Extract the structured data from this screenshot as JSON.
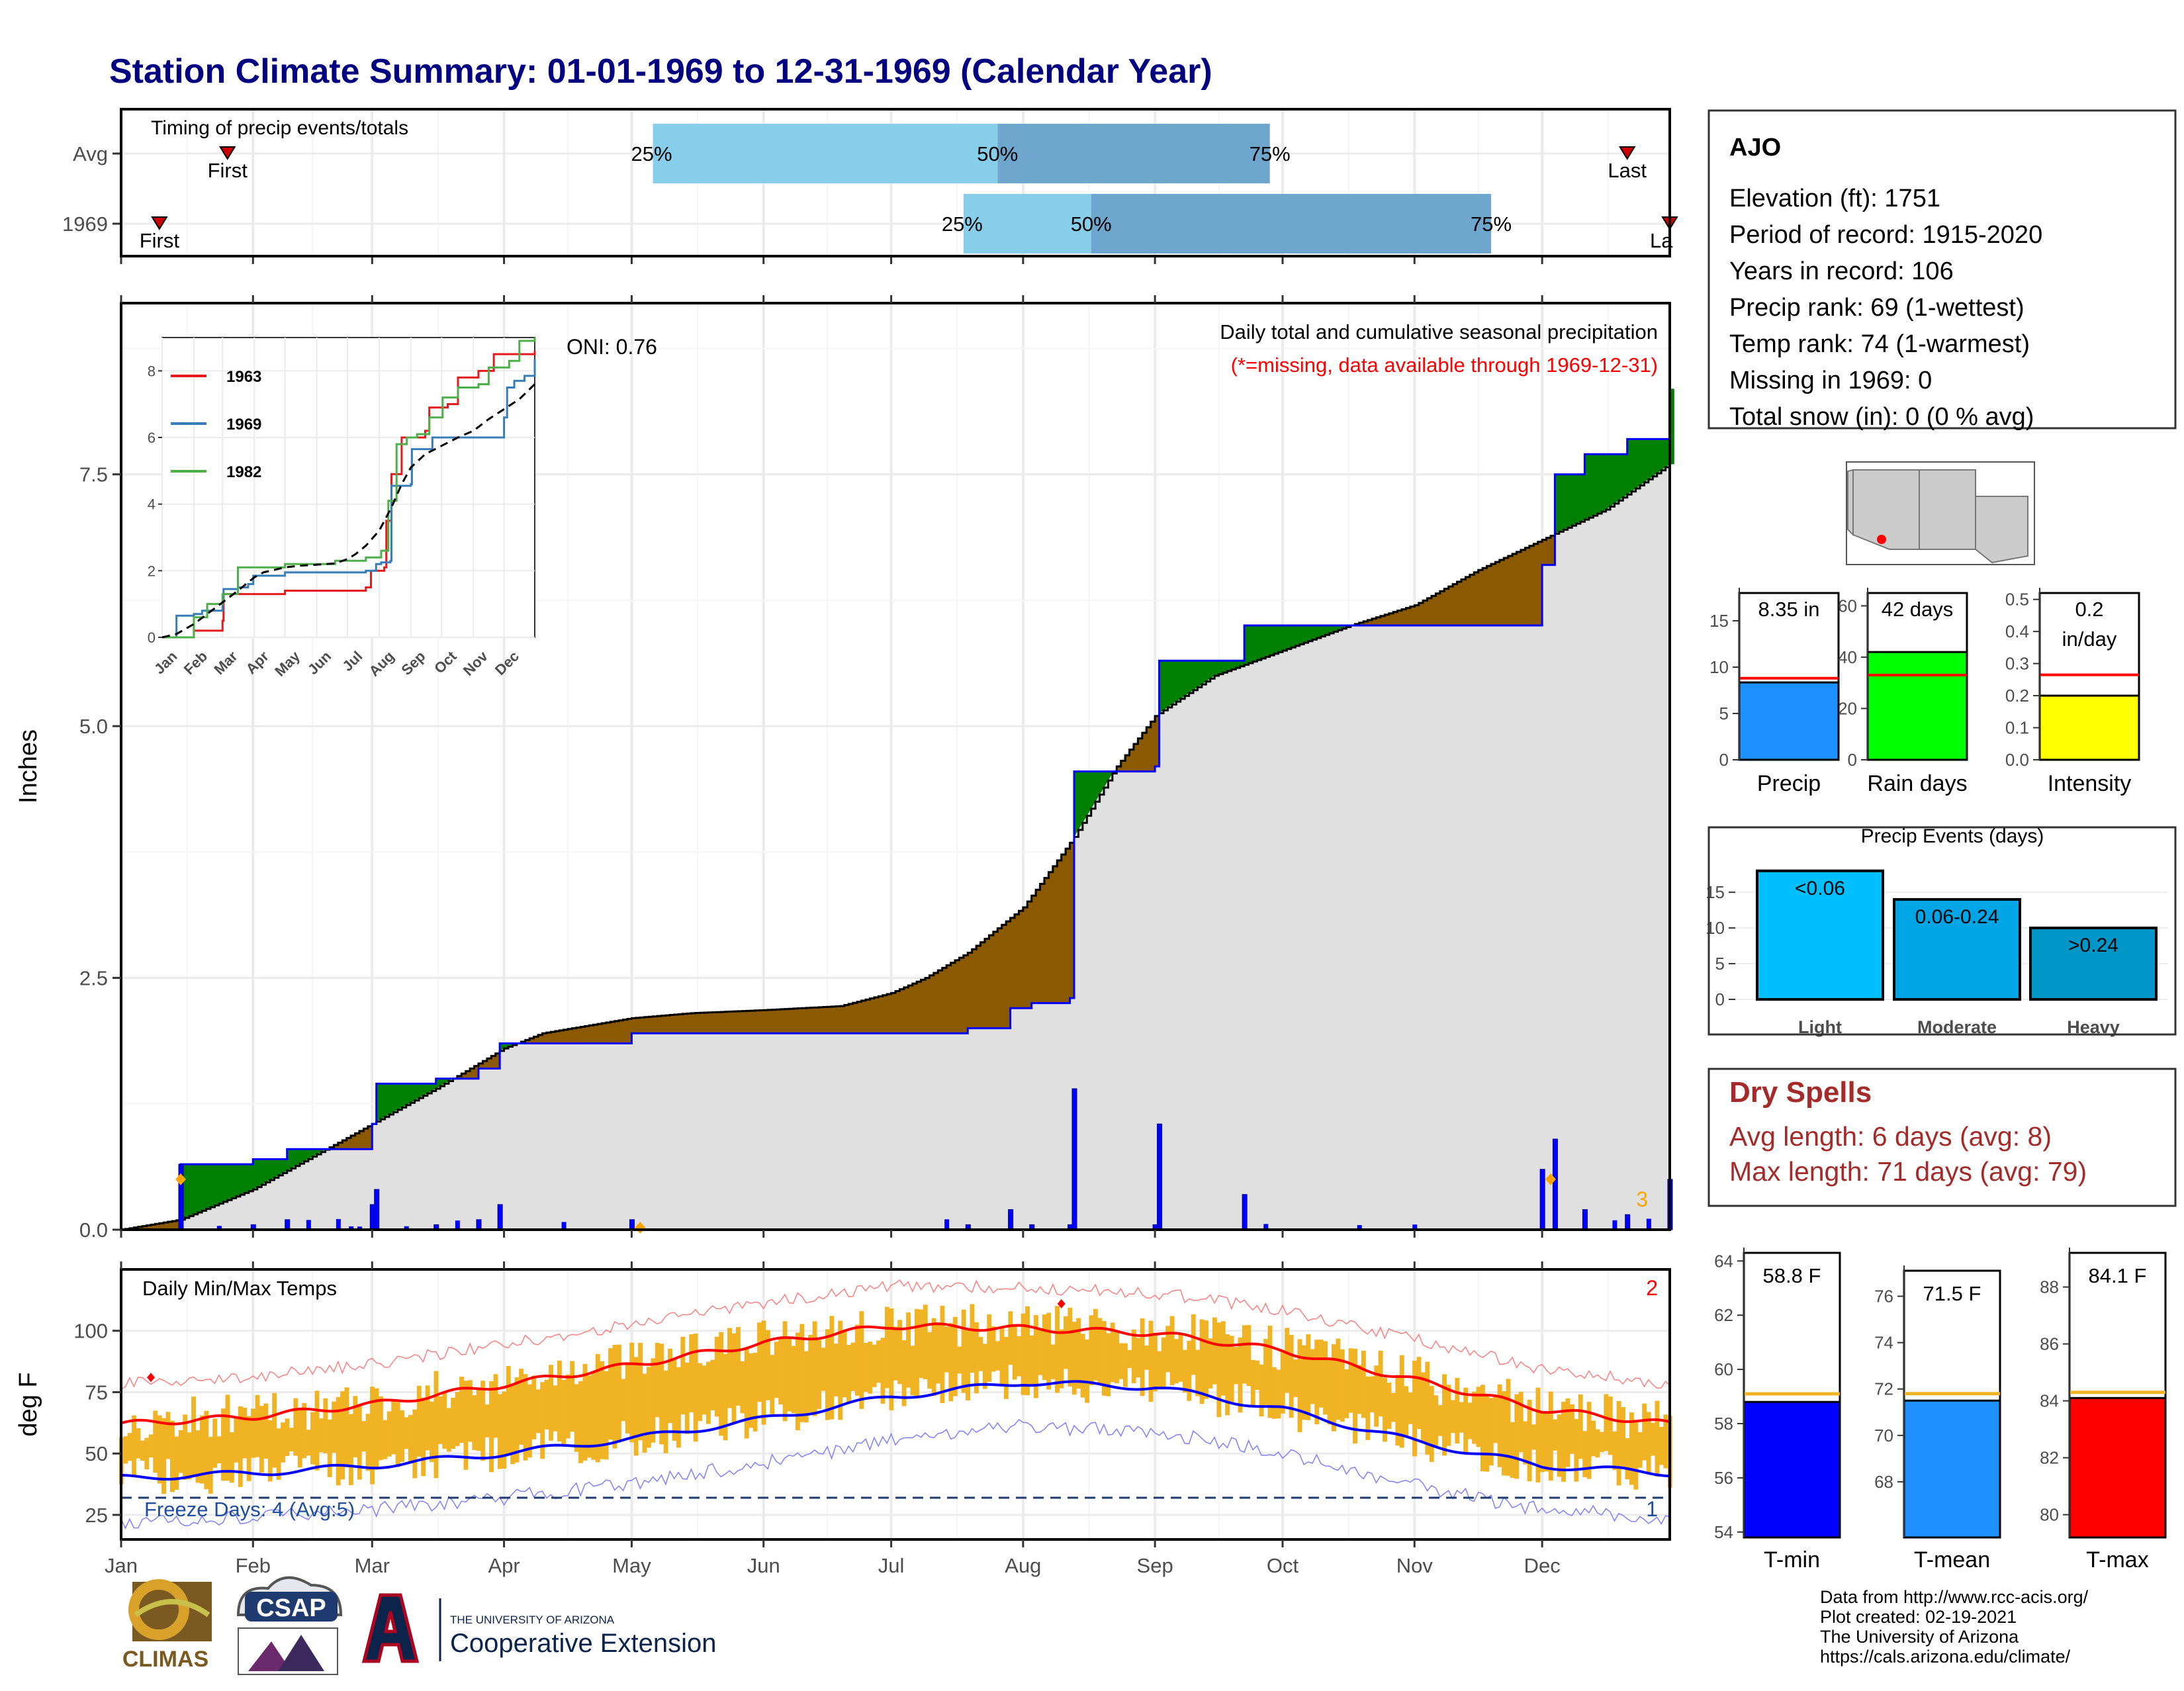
{
  "header": {
    "title": "Station Climate Summary: 01-01-1969 to 12-31-1969 (Calendar Year)"
  },
  "timing": {
    "title": "Timing of precip events/totals",
    "rows": [
      {
        "label": "Avg",
        "first": 26,
        "last": 355,
        "p25": 126,
        "p50": 207,
        "p75": 271
      },
      {
        "label": "1969",
        "first": 10,
        "last": 365,
        "p25": 199,
        "p50": 229,
        "p75": 323
      }
    ],
    "first_label": "First",
    "last_label": "Last",
    "last_label_clipped": "La",
    "p25_label": "25%",
    "p50_label": "50%",
    "p75_label": "75%"
  },
  "precip_panel": {
    "ylabel": "Inches",
    "yticks": [
      "0.0",
      "2.5",
      "5.0",
      "7.5"
    ],
    "ymax": 9.2,
    "oni": "ONI: 0.76",
    "subtitle": "Daily total and cumulative seasonal precipitation",
    "missing_note": "(*=missing, data available through 1969-12-31)",
    "count_label": "3",
    "colors": {
      "avg_fill": "#e0e0e0",
      "above": "#008000",
      "below": "#8b5a00",
      "bars": "#0000ff"
    }
  },
  "months": [
    "Jan",
    "Feb",
    "Mar",
    "Apr",
    "May",
    "Jun",
    "Jul",
    "Aug",
    "Sep",
    "Oct",
    "Nov",
    "Dec"
  ],
  "inset": {
    "yticks": [
      "0",
      "2",
      "4",
      "6",
      "8"
    ],
    "series": [
      {
        "name": "1963",
        "color": "#e41a1c"
      },
      {
        "name": "1969",
        "color": "#377eb8"
      },
      {
        "name": "1982",
        "color": "#4daf4a"
      }
    ]
  },
  "temp_panel": {
    "ylabel": "deg F",
    "title": "Daily Min/Max Temps",
    "yticks": [
      "25",
      "50",
      "75",
      "100"
    ],
    "freeze": "Freeze Days: 4 (Avg:5)",
    "record_hi_count": "2",
    "record_lo_count": "1",
    "freeze_line": 32
  },
  "station": {
    "name": "AJO",
    "lines": [
      "Elevation (ft): 1751",
      "Period of record: 1915-2020",
      "Years in record: 106",
      "Precip rank: 69 (1-wettest)",
      "Temp rank: 74 (1-warmest)",
      "Missing in 1969: 0",
      "Total snow (in): 0 (0 % avg)"
    ]
  },
  "summary_bars": [
    {
      "label": "Precip",
      "value_text": "8.35 in",
      "value": 8.35,
      "avg": 8.8,
      "ymax": 18,
      "ticks": [
        "0",
        "5",
        "10",
        "15"
      ],
      "tickvals": [
        0,
        5,
        10,
        15
      ],
      "color": "#1e90ff"
    },
    {
      "label": "Rain days",
      "value_text": "42 days",
      "value": 42,
      "avg": 33,
      "ymax": 65,
      "ticks": [
        "0",
        "20",
        "40",
        "60"
      ],
      "tickvals": [
        0,
        20,
        40,
        60
      ],
      "color": "#00ff00"
    },
    {
      "label": "Intensity",
      "value_text": "0.2",
      "value_text2": "in/day",
      "value": 0.2,
      "avg": 0.265,
      "ymax": 0.52,
      "ticks": [
        "0.0",
        "0.1",
        "0.2",
        "0.3",
        "0.4",
        "0.5"
      ],
      "tickvals": [
        0,
        0.1,
        0.2,
        0.3,
        0.4,
        0.5
      ],
      "color": "#ffff00"
    }
  ],
  "events": {
    "title": "Precip Events (days)",
    "yticks": [
      "0",
      "5",
      "10",
      "15"
    ],
    "bars": [
      {
        "label": "Light",
        "range": "<0.06",
        "value": 18,
        "color": "#00bfff"
      },
      {
        "label": "Moderate",
        "range": "0.06-0.24",
        "value": 14,
        "color": "#00a5e6"
      },
      {
        "label": "Heavy",
        "range": ">0.24",
        "value": 10,
        "color": "#0096c8"
      }
    ]
  },
  "dry_spells": {
    "title": "Dry Spells",
    "avg": "Avg length: 6 days (avg: 8)",
    "max": "Max length: 71 days (avg: 79)"
  },
  "temp_bars": [
    {
      "label": "T-min",
      "value_text": "58.8 F",
      "value": 58.8,
      "avg": 59.1,
      "ymin": 53.8,
      "ymax": 64.3,
      "ticks": [
        "54",
        "56",
        "58",
        "60",
        "62",
        "64"
      ],
      "tickvals": [
        54,
        56,
        58,
        60,
        62,
        64
      ],
      "color": "#0000ff"
    },
    {
      "label": "T-mean",
      "value_text": "71.5 F",
      "value": 71.5,
      "avg": 71.8,
      "ymin": 65.6,
      "ymax": 77.1,
      "ticks": [
        "68",
        "70",
        "72",
        "74",
        "76"
      ],
      "tickvals": [
        68,
        70,
        72,
        74,
        76
      ],
      "color": "#1e90ff"
    },
    {
      "label": "T-max",
      "value_text": "84.1 F",
      "value": 84.1,
      "avg": 84.3,
      "ymin": 79.2,
      "ymax": 89.2,
      "ticks": [
        "80",
        "82",
        "84",
        "86",
        "88"
      ],
      "tickvals": [
        80,
        82,
        84,
        86,
        88
      ],
      "color": "#ff0000"
    }
  ],
  "footer": {
    "lines": [
      "Data from http://www.rcc-acis.org/",
      "Plot created: 02-19-2021",
      "The University of Arizona",
      "https://cals.arizona.edu/climate/"
    ]
  },
  "logos": {
    "climas": "CLIMAS",
    "csap": "CSAP",
    "ua_small": "THE UNIVERSITY OF ARIZONA",
    "ua_big": "Cooperative Extension"
  },
  "chart_data": [
    {
      "type": "bar",
      "title": "Timing of precip events/totals",
      "categories": [
        "Avg",
        "1969"
      ],
      "series": [
        {
          "name": "First",
          "values": [
            26,
            10
          ]
        },
        {
          "name": "25%",
          "values": [
            126,
            199
          ]
        },
        {
          "name": "50%",
          "values": [
            207,
            229
          ]
        },
        {
          "name": "75%",
          "values": [
            271,
            323
          ]
        },
        {
          "name": "Last",
          "values": [
            355,
            365
          ]
        }
      ]
    },
    {
      "type": "area",
      "title": "Daily total and cumulative seasonal precipitation",
      "ylabel": "Inches",
      "ylim": [
        0,
        9.2
      ],
      "x_unit": "day of year",
      "avg_cumulative": [
        [
          1,
          0
        ],
        [
          15,
          0.1
        ],
        [
          32,
          0.4
        ],
        [
          60,
          1.05
        ],
        [
          75,
          1.4
        ],
        [
          91,
          1.8
        ],
        [
          100,
          1.95
        ],
        [
          121,
          2.1
        ],
        [
          135,
          2.15
        ],
        [
          152,
          2.18
        ],
        [
          170,
          2.22
        ],
        [
          182,
          2.35
        ],
        [
          190,
          2.5
        ],
        [
          200,
          2.75
        ],
        [
          213,
          3.2
        ],
        [
          225,
          3.9
        ],
        [
          235,
          4.6
        ],
        [
          244,
          5.1
        ],
        [
          258,
          5.5
        ],
        [
          274,
          5.75
        ],
        [
          290,
          6.0
        ],
        [
          305,
          6.2
        ],
        [
          320,
          6.55
        ],
        [
          335,
          6.85
        ],
        [
          350,
          7.15
        ],
        [
          365,
          7.6
        ]
      ],
      "series": [
        {
          "name": "1969",
          "values": [
            [
              1,
              0
            ],
            [
              15,
              0.65
            ],
            [
              32,
              0.7
            ],
            [
              40,
              0.8
            ],
            [
              60,
              1.05
            ],
            [
              61,
              1.45
            ],
            [
              75,
              1.5
            ],
            [
              85,
              1.6
            ],
            [
              90,
              1.85
            ],
            [
              121,
              1.95
            ],
            [
              200,
              2.0
            ],
            [
              210,
              2.2
            ],
            [
              215,
              2.25
            ],
            [
              224,
              2.3
            ],
            [
              225,
              4.55
            ],
            [
              244,
              4.6
            ],
            [
              245,
              5.65
            ],
            [
              265,
              6.0
            ],
            [
              335,
              6.6
            ],
            [
              338,
              7.5
            ],
            [
              345,
              7.7
            ],
            [
              355,
              7.85
            ],
            [
              365,
              8.35
            ]
          ]
        }
      ]
    },
    {
      "type": "line",
      "title": "Daily Min/Max Temps",
      "ylabel": "deg F",
      "ylim": [
        15,
        125
      ],
      "freeze_days": 4,
      "avg_freeze_days": 5,
      "avg_max": [
        [
          1,
          62
        ],
        [
          32,
          65
        ],
        [
          60,
          70
        ],
        [
          91,
          78
        ],
        [
          121,
          86
        ],
        [
          152,
          95
        ],
        [
          182,
          102
        ],
        [
          213,
          101
        ],
        [
          244,
          99
        ],
        [
          274,
          92
        ],
        [
          305,
          80
        ],
        [
          335,
          68
        ],
        [
          365,
          62
        ]
      ],
      "avg_min": [
        [
          1,
          40
        ],
        [
          32,
          42
        ],
        [
          60,
          45
        ],
        [
          91,
          50
        ],
        [
          121,
          56
        ],
        [
          152,
          64
        ],
        [
          182,
          73
        ],
        [
          213,
          79
        ],
        [
          244,
          77
        ],
        [
          274,
          68
        ],
        [
          305,
          55
        ],
        [
          335,
          45
        ],
        [
          365,
          42
        ]
      ]
    },
    {
      "type": "bar",
      "title": "Precip Events (days)",
      "categories": [
        "Light",
        "Moderate",
        "Heavy"
      ],
      "values": [
        18,
        14,
        10
      ]
    }
  ]
}
